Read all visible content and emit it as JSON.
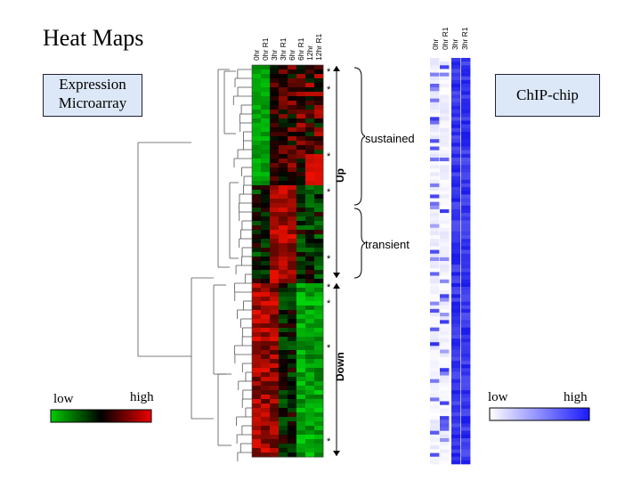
{
  "title": "Heat Maps",
  "expression_label": [
    "Expression",
    "Microarray"
  ],
  "chip_label": "ChIP-chip",
  "expression_columns": [
    "0hr",
    "0hr R1",
    "3hr",
    "3hr R1",
    "6hr",
    "6hr R1",
    "12hr",
    "12hr R1"
  ],
  "chip_columns": [
    "0hr",
    "0hr R1",
    "3hr",
    "3hr R1"
  ],
  "annotations": {
    "sustained": "sustained",
    "transient": "transient",
    "up": "Up",
    "down": "Down",
    "marker": "*"
  },
  "expression_legend": {
    "low": "low",
    "high": "high",
    "colors": [
      "#00cc00",
      "#000000",
      "#ee0000"
    ]
  },
  "chip_legend": {
    "low": "low",
    "high": "high",
    "colors": [
      "#ffffff",
      "#1a1aff"
    ]
  },
  "colors": {
    "label_box_bg": "#dce8f7",
    "up_color": "#ee2222",
    "down_color": "#11bb11",
    "chip_color": "#2a2aee"
  }
}
